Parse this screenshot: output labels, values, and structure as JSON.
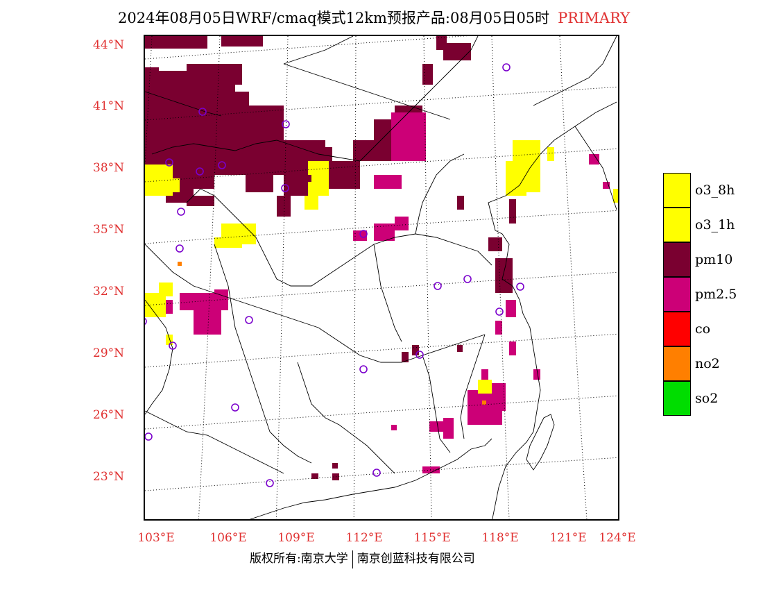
{
  "title": {
    "main": "2024年08月05日WRF/cmaq模式12km预报产品:08月05日05时",
    "tag": "PRIMARY"
  },
  "colors": {
    "axis_label": "#e03030",
    "o3_8h": "#ffff00",
    "o3_1h": "#ffff00",
    "pm10": "#7a0030",
    "pm2_5": "#cc0077",
    "co": "#ff0000",
    "no2": "#ff7f00",
    "so2": "#00dd00",
    "station_marker": "#7a00cc"
  },
  "latitude_labels": [
    "44°N",
    "41°N",
    "38°N",
    "35°N",
    "32°N",
    "29°N",
    "26°N",
    "23°N"
  ],
  "longitude_labels": [
    "103°E",
    "106°E",
    "109°E",
    "112°E",
    "115°E",
    "118°E",
    "121°E",
    "124°E"
  ],
  "legend": [
    {
      "label": "o3_8h",
      "color": "#ffff00"
    },
    {
      "label": "o3_1h",
      "color": "#ffff00"
    },
    {
      "label": "pm10",
      "color": "#7a0030"
    },
    {
      "label": "pm2.5",
      "color": "#cc0077"
    },
    {
      "label": "co",
      "color": "#ff0000"
    },
    {
      "label": "no2",
      "color": "#ff7f00"
    },
    {
      "label": "so2",
      "color": "#00dd00"
    }
  ],
  "footer": {
    "left": "版权所有:南京大学",
    "right": "南京创蓝科技有限公司"
  }
}
